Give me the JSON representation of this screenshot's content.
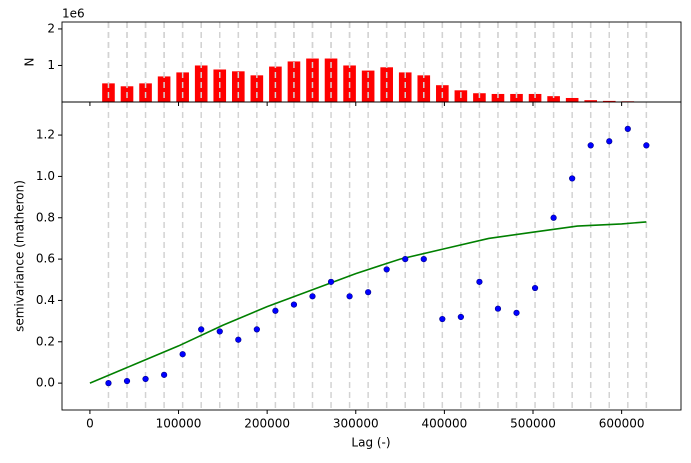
{
  "chart_data": {
    "type": "variogram",
    "x_label": "Lag (-)",
    "y_label": "semivariance (matheron)",
    "top_y_label": "N",
    "top_offset_label": "1e6",
    "lags": [
      20930,
      41860,
      62790,
      83720,
      104650,
      125580,
      146510,
      167440,
      188370,
      209300,
      230230,
      251160,
      272090,
      293020,
      313950,
      334880,
      355810,
      376740,
      397670,
      418600,
      439530,
      460460,
      481390,
      502320,
      523250,
      544180,
      565110,
      586040,
      606970,
      627900
    ],
    "counts": [
      0.51,
      0.43,
      0.51,
      0.7,
      0.81,
      1.0,
      0.89,
      0.84,
      0.73,
      0.97,
      1.11,
      1.19,
      1.19,
      1.0,
      0.86,
      0.95,
      0.81,
      0.73,
      0.46,
      0.32,
      0.24,
      0.22,
      0.22,
      0.22,
      0.16,
      0.11,
      0.05,
      0.03,
      0.02,
      0.0
    ],
    "count_color": "#ff0000",
    "top_ylim": [
      0,
      2.19
    ],
    "top_yticks": [
      1,
      2
    ],
    "semivariance": [
      0.0,
      0.01,
      0.02,
      0.04,
      0.14,
      0.26,
      0.25,
      0.21,
      0.26,
      0.35,
      0.38,
      0.42,
      0.49,
      0.42,
      0.44,
      0.55,
      0.6,
      0.6,
      0.31,
      0.32,
      0.49,
      0.36,
      0.34,
      0.46,
      0.8,
      0.99,
      1.15,
      1.17,
      1.23,
      1.15
    ],
    "point_color": "#0000ff",
    "model_x": [
      0,
      50000,
      100000,
      150000,
      200000,
      250000,
      300000,
      350000,
      400000,
      450000,
      500000,
      550000,
      600000,
      627900
    ],
    "model_y": [
      0,
      0.09,
      0.18,
      0.28,
      0.37,
      0.45,
      0.53,
      0.6,
      0.65,
      0.7,
      0.73,
      0.76,
      0.77,
      0.78
    ],
    "model_color": "#008000",
    "xlim": [
      -31500,
      667000
    ],
    "xticks": [
      0,
      100000,
      200000,
      300000,
      400000,
      500000,
      600000
    ],
    "ylim": [
      -0.13,
      1.36
    ],
    "yticks": [
      {
        "value": 0,
        "label": "0.0"
      },
      0.2,
      0.4,
      0.6,
      0.8,
      {
        "value": 1,
        "label": "1.0"
      },
      1.2
    ]
  }
}
